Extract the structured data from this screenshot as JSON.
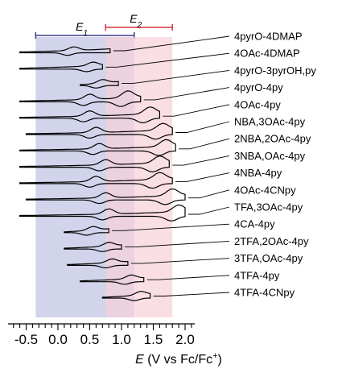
{
  "chart_data": {
    "type": "line",
    "xlabel_parts": [
      "E",
      " (V vs Fc/Fc",
      "+",
      ")"
    ],
    "xlim": [
      -0.6,
      2.1
    ],
    "xticks": [
      {
        "value": -0.5,
        "label": "-0.5"
      },
      {
        "value": 0.0,
        "label": "0.0"
      },
      {
        "value": 0.5,
        "label": "0.5"
      },
      {
        "value": 1.0,
        "label": "1.0"
      },
      {
        "value": 1.5,
        "label": "1.5"
      },
      {
        "value": 2.0,
        "label": "2.0"
      }
    ],
    "regions": [
      {
        "label": "E",
        "subscript": "1",
        "from": -0.35,
        "to": 1.2,
        "color": "#c9cde6",
        "bar_color": "#3a3f8f"
      },
      {
        "label": "E",
        "subscript": "2",
        "from": 0.75,
        "to": 1.8,
        "color": "#f7d2d8",
        "bar_color": "#d6303f"
      }
    ],
    "series": [
      {
        "name": "4pyrO-4DMAP",
        "x_start": -0.6,
        "x_end": 0.82,
        "peak_x": 0.25,
        "peak2_x": null
      },
      {
        "name": "4OAc-4DMAP",
        "x_start": -0.6,
        "x_end": 0.7,
        "peak_x": 0.55,
        "peak2_x": null
      },
      {
        "name": "4pyrO-3pyrOH,py",
        "x_start": 0.35,
        "x_end": 0.95,
        "peak_x": 0.7,
        "peak2_x": null
      },
      {
        "name": "4pyrO-4py",
        "x_start": -0.6,
        "x_end": 1.3,
        "peak_x": 0.5,
        "peak2_x": 1.1
      },
      {
        "name": "4OAc-4py",
        "x_start": -0.6,
        "x_end": 1.6,
        "peak_x": 0.5,
        "peak2_x": 1.45
      },
      {
        "name": "NBA,3OAc-4py",
        "x_start": -0.5,
        "x_end": 1.8,
        "peak_x": 0.6,
        "peak2_x": 1.65
      },
      {
        "name": "2NBA,2OAc-4py",
        "x_start": -0.6,
        "x_end": 1.85,
        "peak_x": 0.65,
        "peak2_x": 1.7
      },
      {
        "name": "3NBA,OAc-4py",
        "x_start": -0.6,
        "x_end": 1.75,
        "peak_x": 0.75,
        "peak2_x": 1.6
      },
      {
        "name": "4NBA-4py",
        "x_start": -0.6,
        "x_end": 1.8,
        "peak_x": 0.6,
        "peak2_x": 1.6
      },
      {
        "name": "4OAc-4CNpy",
        "x_start": -0.5,
        "x_end": 2.0,
        "peak_x": 0.75,
        "peak2_x": 1.8
      },
      {
        "name": "TFA,3OAc-4py",
        "x_start": -0.6,
        "x_end": 2.0,
        "peak_x": 0.8,
        "peak2_x": 1.9
      },
      {
        "name": "4CA-4py",
        "x_start": 0.1,
        "x_end": 0.8,
        "peak_x": 0.55,
        "peak2_x": null
      },
      {
        "name": "2TFA,2OAc-4py",
        "x_start": 0.1,
        "x_end": 1.0,
        "peak_x": 0.8,
        "peak2_x": null
      },
      {
        "name": "3TFA,OAc-4py",
        "x_start": 0.15,
        "x_end": 1.1,
        "peak_x": 0.85,
        "peak2_x": null
      },
      {
        "name": "4TFA-4py",
        "x_start": 0.35,
        "x_end": 1.35,
        "peak_x": 1.15,
        "peak2_x": null
      },
      {
        "name": "4TFA-4CNpy",
        "x_start": 0.7,
        "x_end": 1.45,
        "peak_x": 1.3,
        "peak2_x": null
      }
    ]
  }
}
